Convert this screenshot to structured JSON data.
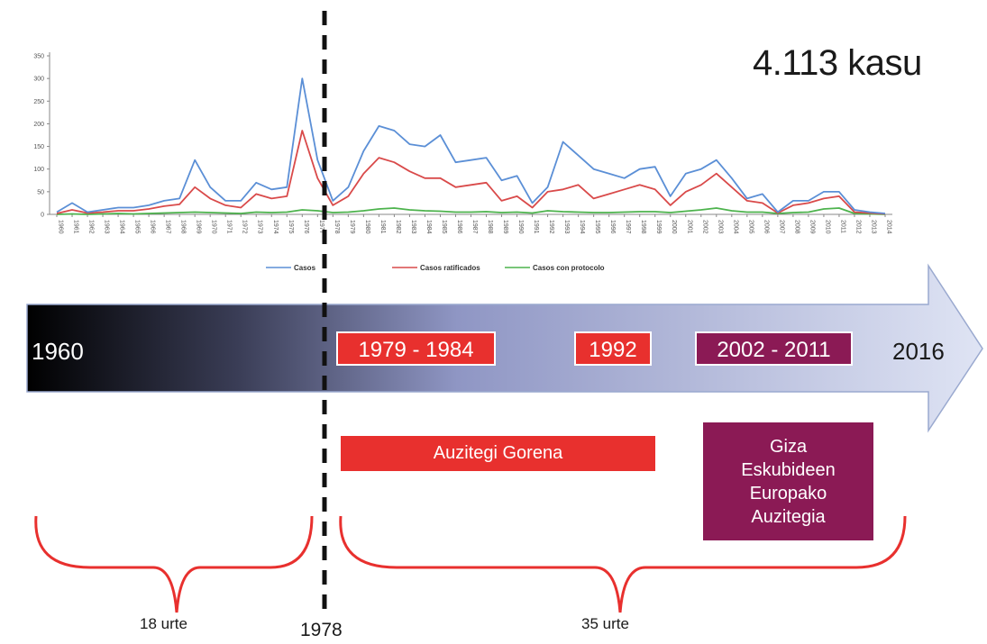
{
  "headline": {
    "case_count": "4.113 kasu"
  },
  "timeline": {
    "start_year": "1960",
    "end_year": "2016",
    "periods": [
      {
        "label": "1979 - 1984",
        "color": "#e8302e"
      },
      {
        "label": "1992",
        "color": "#e8302e"
      },
      {
        "label": "2002 - 2011",
        "color": "#8b1a55"
      }
    ],
    "marker_year": "1978"
  },
  "courts": {
    "supreme": "Auzitegi Gorena",
    "echr": "Giza Eskubideen Europako Auzitegia"
  },
  "braces": {
    "left_label": "18 urte",
    "right_label": "35 urte"
  },
  "colors": {
    "arrow_start": "#000000",
    "arrow_end": "#dfe4f4",
    "red": "#e8302e",
    "purple": "#8b1a55"
  },
  "chart_data": {
    "type": "line",
    "x": [
      1960,
      1961,
      1962,
      1963,
      1964,
      1965,
      1966,
      1967,
      1968,
      1969,
      1970,
      1971,
      1972,
      1973,
      1974,
      1975,
      1976,
      1977,
      1978,
      1979,
      1980,
      1981,
      1982,
      1983,
      1984,
      1985,
      1986,
      1987,
      1988,
      1989,
      1990,
      1991,
      1992,
      1993,
      1994,
      1995,
      1996,
      1997,
      1998,
      1999,
      2000,
      2001,
      2002,
      2003,
      2004,
      2005,
      2006,
      2007,
      2008,
      2009,
      2010,
      2011,
      2012,
      2013,
      2014
    ],
    "ylim": [
      0,
      350
    ],
    "yticks": [
      "0",
      "50",
      "100",
      "150",
      "200",
      "250",
      "300",
      "350"
    ],
    "series": [
      {
        "name": "Casos",
        "color": "#5b8fd6",
        "values": [
          5,
          25,
          5,
          10,
          15,
          15,
          20,
          30,
          35,
          120,
          60,
          30,
          30,
          70,
          55,
          60,
          300,
          120,
          30,
          60,
          140,
          195,
          185,
          155,
          150,
          175,
          115,
          120,
          125,
          75,
          85,
          25,
          60,
          160,
          130,
          100,
          90,
          80,
          100,
          105,
          40,
          90,
          100,
          120,
          80,
          35,
          45,
          5,
          30,
          30,
          50,
          50,
          10,
          5,
          2
        ]
      },
      {
        "name": "Casos ratificados",
        "color": "#d94a4a",
        "values": [
          2,
          10,
          3,
          5,
          8,
          8,
          12,
          18,
          22,
          60,
          35,
          20,
          15,
          45,
          35,
          40,
          185,
          80,
          20,
          40,
          90,
          125,
          115,
          95,
          80,
          80,
          60,
          65,
          70,
          30,
          40,
          15,
          50,
          55,
          65,
          35,
          45,
          55,
          65,
          55,
          20,
          50,
          65,
          90,
          60,
          30,
          25,
          3,
          20,
          25,
          35,
          40,
          5,
          3,
          1
        ]
      },
      {
        "name": "Casos con protocolo",
        "color": "#4db34d",
        "values": [
          0,
          1,
          0,
          1,
          2,
          1,
          2,
          3,
          4,
          5,
          4,
          3,
          2,
          5,
          4,
          5,
          10,
          8,
          4,
          5,
          8,
          12,
          14,
          10,
          8,
          7,
          5,
          5,
          6,
          4,
          5,
          3,
          8,
          6,
          5,
          4,
          4,
          5,
          6,
          6,
          4,
          7,
          10,
          14,
          8,
          5,
          5,
          2,
          4,
          5,
          12,
          14,
          2,
          1,
          0
        ]
      }
    ]
  }
}
